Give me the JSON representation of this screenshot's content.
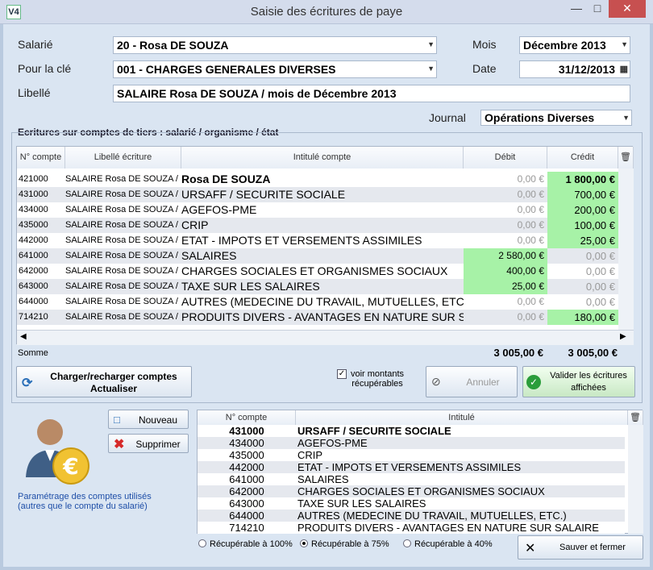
{
  "window": {
    "title": "Saisie des écritures de paye",
    "app_icon": "V4"
  },
  "form": {
    "salarie_label": "Salarié",
    "salarie_value": "20 - Rosa DE SOUZA",
    "cle_label": "Pour la clé",
    "cle_value": "001 - CHARGES GENERALES DIVERSES",
    "libelle_label": "Libellé",
    "libelle_value": "SALAIRE Rosa DE SOUZA / mois de Décembre 2013",
    "mois_label": "Mois",
    "mois_value": "Décembre 2013",
    "date_label": "Date",
    "date_value": "31/12/2013",
    "journal_label": "Journal",
    "journal_value": "Opérations Diverses"
  },
  "entries": {
    "group_title": "Ecritures sur comptes de tiers : salarié / organisme / état",
    "headers": {
      "no": "N° compte",
      "libelle": "Libellé écriture",
      "intitule": "Intitulé compte",
      "debit": "Débit",
      "credit": "Crédit"
    },
    "rows": [
      {
        "no": "421000",
        "libelle": "SALAIRE Rosa DE SOUZA /",
        "intitule": "Rosa DE SOUZA",
        "debit": "0,00 €",
        "credit": "1 800,00 €"
      },
      {
        "no": "431000",
        "libelle": "SALAIRE Rosa DE SOUZA /",
        "intitule": "URSAFF / SECURITE SOCIALE",
        "debit": "0,00 €",
        "credit": "700,00 €"
      },
      {
        "no": "434000",
        "libelle": "SALAIRE Rosa DE SOUZA /",
        "intitule": "AGEFOS-PME",
        "debit": "0,00 €",
        "credit": "200,00 €"
      },
      {
        "no": "435000",
        "libelle": "SALAIRE Rosa DE SOUZA /",
        "intitule": "CRIP",
        "debit": "0,00 €",
        "credit": "100,00 €"
      },
      {
        "no": "442000",
        "libelle": "SALAIRE Rosa DE SOUZA /",
        "intitule": "ETAT - IMPOTS ET VERSEMENTS ASSIMILES",
        "debit": "0,00 €",
        "credit": "25,00 €"
      },
      {
        "no": "641000",
        "libelle": "SALAIRE Rosa DE SOUZA /",
        "intitule": "SALAIRES",
        "debit": "2 580,00 €",
        "credit": "0,00 €"
      },
      {
        "no": "642000",
        "libelle": "SALAIRE Rosa DE SOUZA /",
        "intitule": "CHARGES SOCIALES ET ORGANISMES SOCIAUX",
        "debit": "400,00 €",
        "credit": "0,00 €"
      },
      {
        "no": "643000",
        "libelle": "SALAIRE Rosa DE SOUZA /",
        "intitule": "TAXE SUR LES SALAIRES",
        "debit": "25,00 €",
        "credit": "0,00 €"
      },
      {
        "no": "644000",
        "libelle": "SALAIRE Rosa DE SOUZA /",
        "intitule": "AUTRES (MEDECINE DU TRAVAIL, MUTUELLES, ETC.)",
        "debit": "0,00 €",
        "credit": "0,00 €"
      },
      {
        "no": "714210",
        "libelle": "SALAIRE Rosa DE SOUZA /",
        "intitule": "PRODUITS DIVERS - AVANTAGES EN NATURE SUR SA",
        "debit": "0,00 €",
        "credit": "180,00 €"
      }
    ],
    "sum_label": "Somme",
    "sum_debit": "3 005,00 €",
    "sum_credit": "3 005,00 €"
  },
  "actions": {
    "charger_label_1": "Charger/recharger comptes",
    "charger_label_2": "Actualiser",
    "checkbox_label_1": "voir montants",
    "checkbox_label_2": "récupérables",
    "annuler_label": "Annuler",
    "valider_label_1": "Valider les écritures",
    "valider_label_2": "affichées"
  },
  "bottom": {
    "nouveau_label": "Nouveau",
    "supprimer_label": "Supprimer",
    "param_text_1": "Paramétrage des comptes utilisés",
    "param_text_2": "(autres que le compte du salarié)",
    "headers": {
      "no": "N° compte",
      "intitule": "Intitulé"
    },
    "rows": [
      {
        "no": "431000",
        "intitule": "URSAFF / SECURITE SOCIALE"
      },
      {
        "no": "434000",
        "intitule": "AGEFOS-PME"
      },
      {
        "no": "435000",
        "intitule": "CRIP"
      },
      {
        "no": "442000",
        "intitule": "ETAT - IMPOTS ET VERSEMENTS ASSIMILES"
      },
      {
        "no": "641000",
        "intitule": "SALAIRES"
      },
      {
        "no": "642000",
        "intitule": "CHARGES SOCIALES ET ORGANISMES SOCIAUX"
      },
      {
        "no": "643000",
        "intitule": "TAXE SUR LES SALAIRES"
      },
      {
        "no": "644000",
        "intitule": "AUTRES (MEDECINE DU TRAVAIL, MUTUELLES, ETC.)"
      },
      {
        "no": "714210",
        "intitule": "PRODUITS DIVERS - AVANTAGES EN NATURE SUR SALAIRE"
      }
    ],
    "radio_100": "Récupérable à 100%",
    "radio_75": "Récupérable à 75%",
    "radio_40": "Récupérable à 40%",
    "radio_selected": "75",
    "sauver_label": "Sauver et fermer"
  }
}
